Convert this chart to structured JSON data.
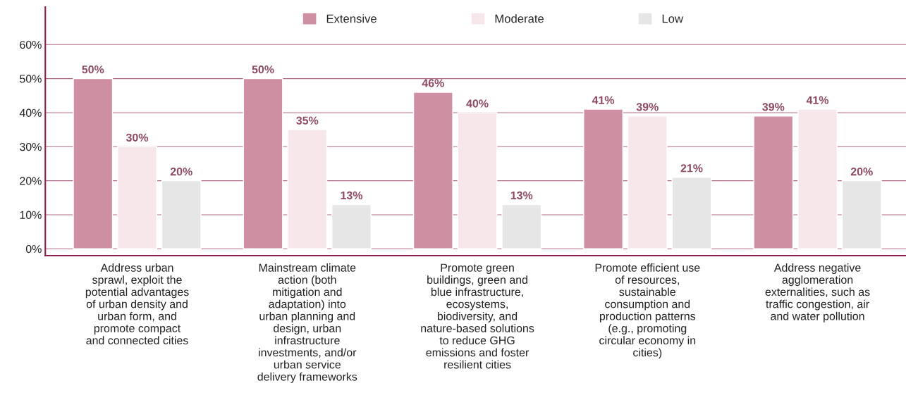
{
  "chart_data": {
    "type": "bar",
    "categories": [
      "Address urban\nsprawl, exploit the\npotential advantages\nof urban density and\nurban form, and\npromote compact\nand connected cities",
      "Mainstream climate\naction (both\nmitigation and\nadaptation) into\nurban planning and\ndesign, urban\ninfrastructure\ninvestments, and/or\nurban service\ndelivery frameworks",
      "Promote green\nbuildings, green and\nblue infrastructure,\necosystems,\nbiodiversity, and\nnature-based solutions\nto reduce GHG\nemissions and foster\nresilient cities",
      "Promote efficient use\nof resources,\nsustainable\nconsumption and\nproduction patterns\n(e.g., promoting\ncircular economy in\ncities)",
      "Address negative\nagglomeration\nexternalities, such as\ntraffic congestion, air\nand water pollution"
    ],
    "series": [
      {
        "name": "Extensive",
        "color": "#cd8fa1",
        "values": [
          50,
          50,
          46,
          41,
          39
        ],
        "value_labels": [
          "50%",
          "50%",
          "46%",
          "41%",
          "39%"
        ]
      },
      {
        "name": "Moderate",
        "color": "#f7e7eb",
        "values": [
          30,
          35,
          40,
          39,
          41
        ],
        "value_labels": [
          "30%",
          "35%",
          "40%",
          "39%",
          "41%"
        ]
      },
      {
        "name": "Low",
        "color": "#e6e6e6",
        "values": [
          20,
          13,
          13,
          21,
          20
        ],
        "value_labels": [
          "20%",
          "13%",
          "13%",
          "21%",
          "20%"
        ]
      }
    ],
    "ylim": [
      -2,
      71
    ],
    "yticks": [
      {
        "value": 0,
        "label": "0%"
      },
      {
        "value": 10,
        "label": "10%"
      },
      {
        "value": 20,
        "label": "20%"
      },
      {
        "value": 30,
        "label": "30%"
      },
      {
        "value": 40,
        "label": "40%"
      },
      {
        "value": 50,
        "label": "50%"
      },
      {
        "value": 60,
        "label": "60%"
      }
    ],
    "grid": "y",
    "legend": "top"
  }
}
